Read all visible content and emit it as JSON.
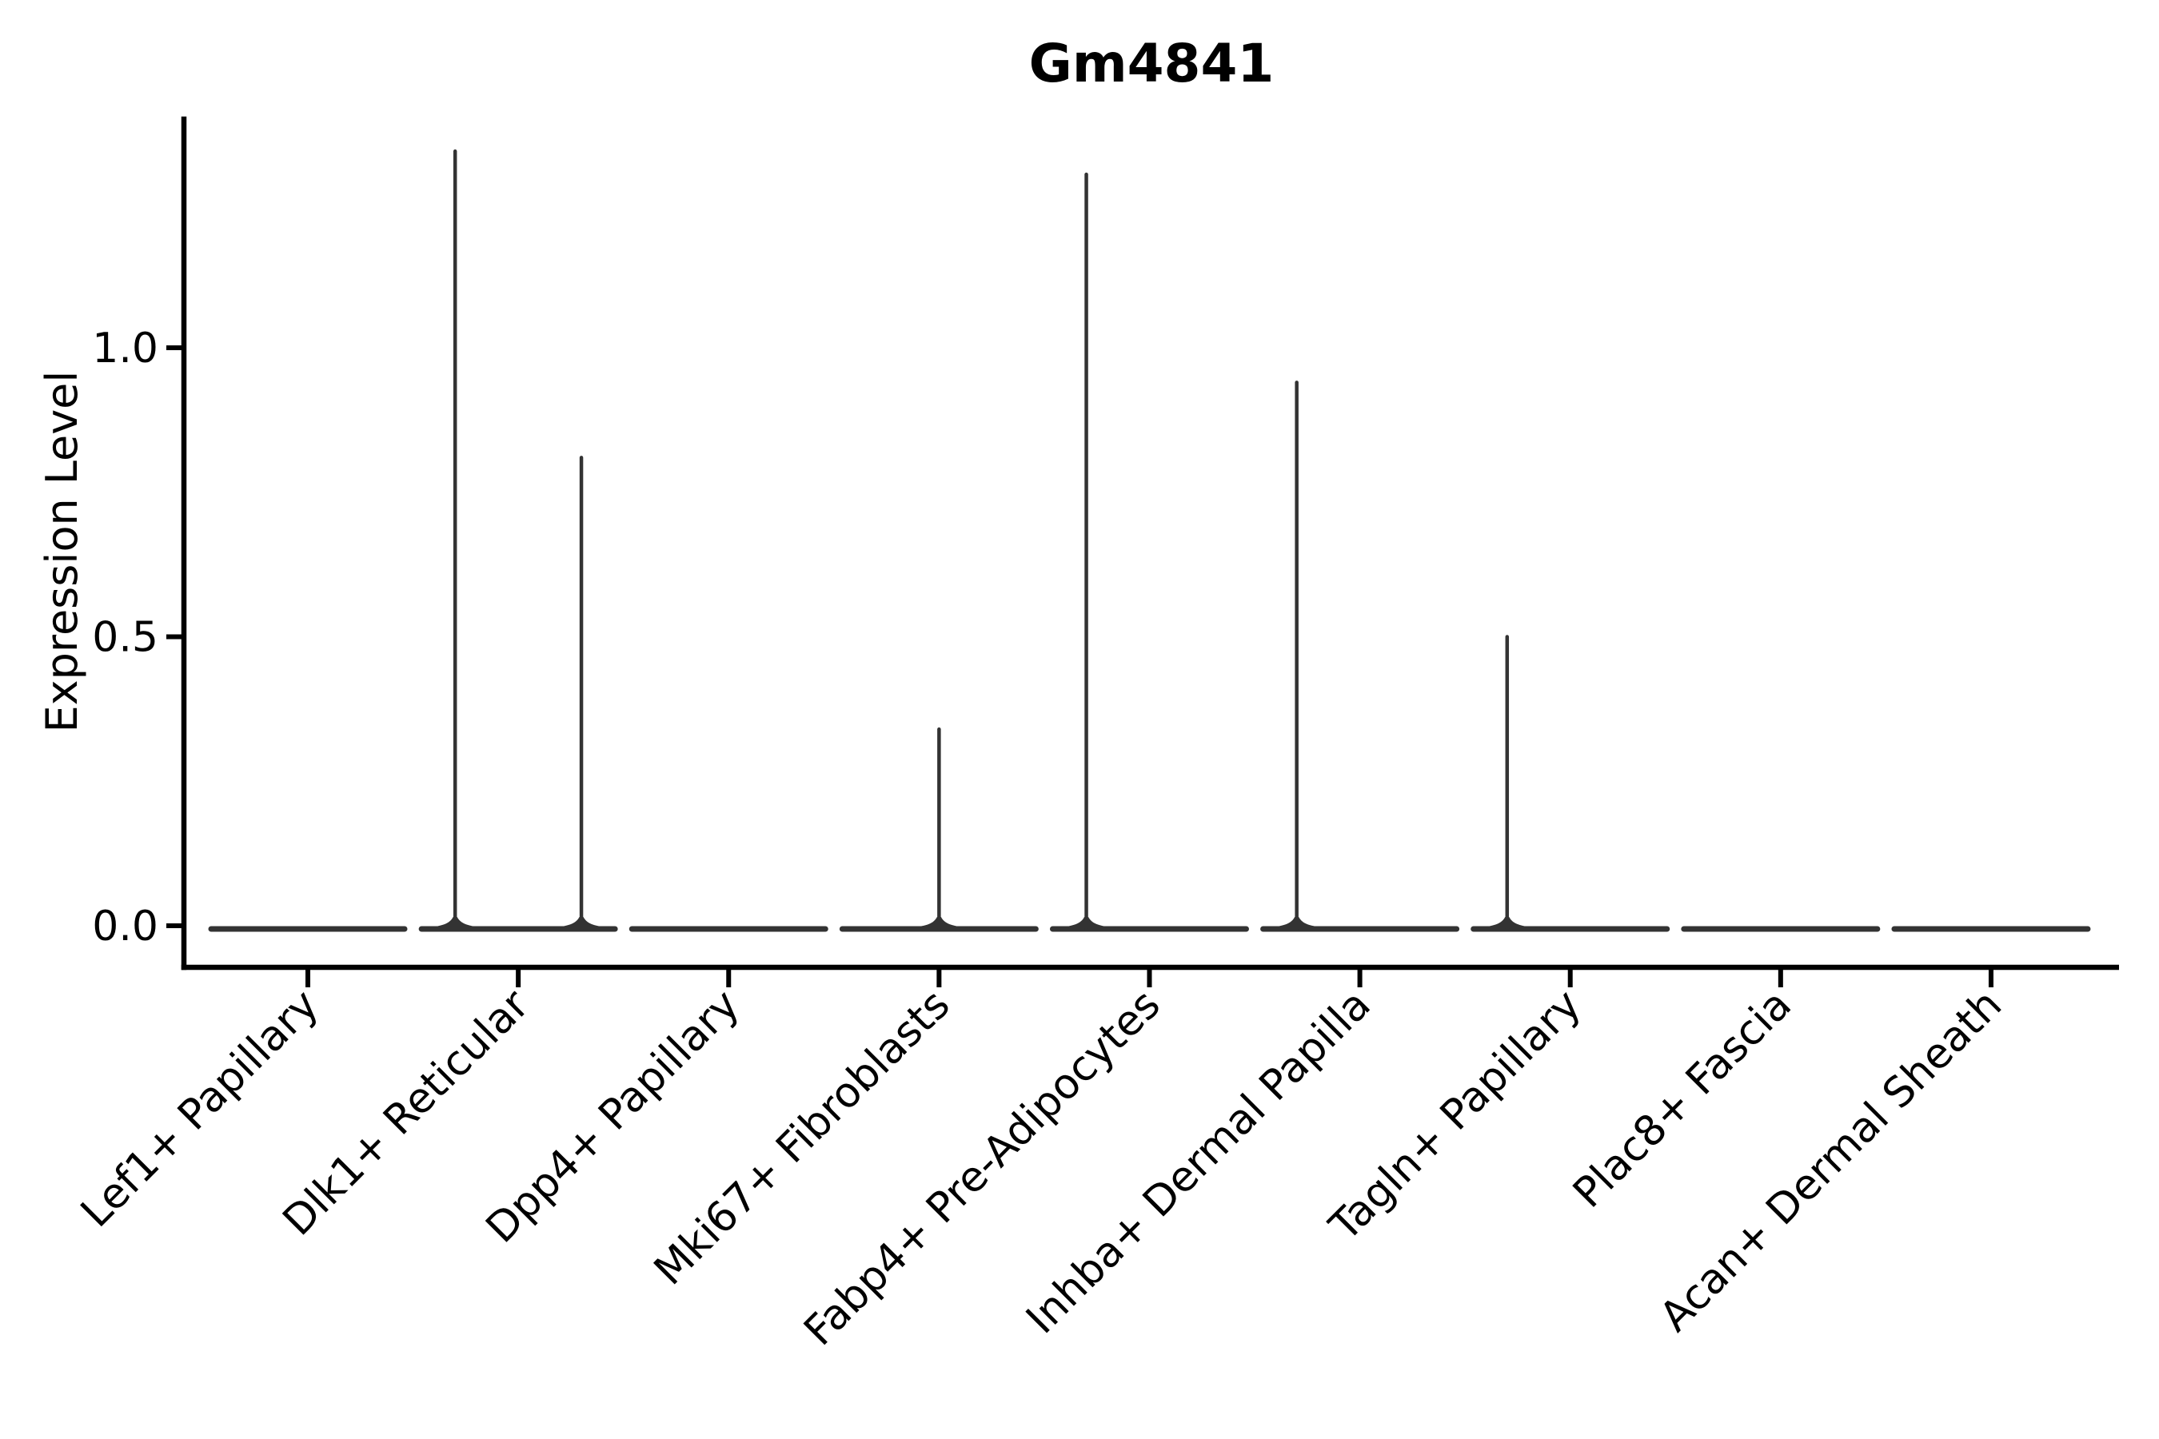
{
  "chart_data": {
    "type": "violin",
    "title": "Gm4841",
    "ylabel": "Expression Level",
    "xlabel": "",
    "legend": "none",
    "grid": false,
    "ylim": [
      0,
      1.4
    ],
    "yticks": [
      {
        "label": "0.0",
        "value": 0.0
      },
      {
        "label": "0.5",
        "value": 0.5
      },
      {
        "label": "1.0",
        "value": 1.0
      }
    ],
    "categories": [
      "Lef1+ Papillary",
      "Dlk1+ Reticular",
      "Dpp4+ Papillary",
      "Mki67+ Fibroblasts",
      "Fabp4+ Pre-Adipocytes",
      "Inhba+ Dermal Papilla",
      "Tagln+ Papillary",
      "Plac8+ Fascia",
      "Acan+ Dermal Sheath"
    ],
    "violins": [
      {
        "category": "Lef1+ Papillary",
        "baseline_value": 0,
        "spikes": []
      },
      {
        "category": "Dlk1+ Reticular",
        "baseline_value": 0,
        "spikes": [
          {
            "offset_frac": -0.3,
            "max": 1.34
          },
          {
            "offset_frac": 0.3,
            "max": 0.81
          }
        ]
      },
      {
        "category": "Dpp4+ Papillary",
        "baseline_value": 0,
        "spikes": []
      },
      {
        "category": "Mki67+ Fibroblasts",
        "baseline_value": 0,
        "spikes": [
          {
            "offset_frac": 0.0,
            "max": 0.34
          }
        ]
      },
      {
        "category": "Fabp4+ Pre-Adipocytes",
        "baseline_value": 0,
        "spikes": [
          {
            "offset_frac": -0.3,
            "max": 1.3
          }
        ]
      },
      {
        "category": "Inhba+ Dermal Papilla",
        "baseline_value": 0,
        "spikes": [
          {
            "offset_frac": -0.3,
            "max": 0.94
          }
        ]
      },
      {
        "category": "Tagln+ Papillary",
        "baseline_value": 0,
        "spikes": [
          {
            "offset_frac": -0.3,
            "max": 0.5
          }
        ]
      },
      {
        "category": "Plac8+ Fascia",
        "baseline_value": 0,
        "spikes": []
      },
      {
        "category": "Acan+ Dermal Sheath",
        "baseline_value": 0,
        "spikes": []
      }
    ],
    "colors": {
      "violin": "#333333",
      "axis": "#000000",
      "text": "#000000",
      "background": "#ffffff"
    }
  }
}
